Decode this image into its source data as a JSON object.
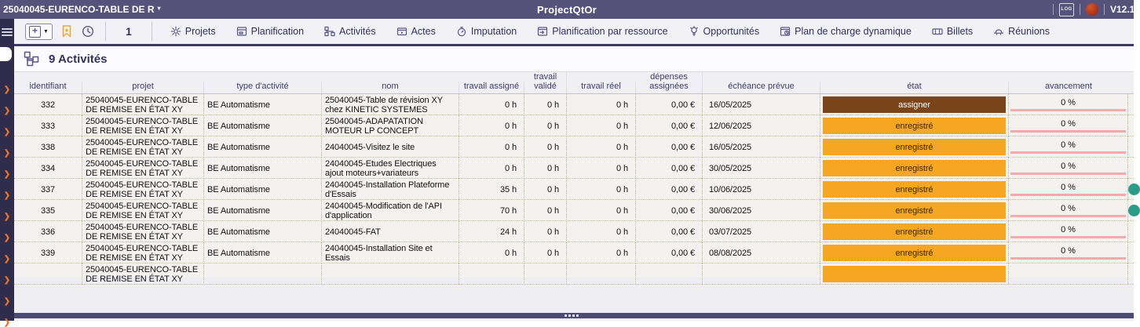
{
  "topbar": {
    "context_title": "25040045-EURENCO-TABLE DE R",
    "app_title": "ProjectQtOr",
    "log_label": "LOG",
    "version": "V12.1"
  },
  "toolbar": {
    "page_number": "1",
    "menu": [
      {
        "name": "projets",
        "label": "Projets",
        "icon": "gear"
      },
      {
        "name": "planification",
        "label": "Planification",
        "icon": "planning"
      },
      {
        "name": "activites",
        "label": "Activités",
        "icon": "orgchart"
      },
      {
        "name": "actes",
        "label": "Actes",
        "icon": "film"
      },
      {
        "name": "imputation",
        "label": "Imputation",
        "icon": "stopwatch"
      },
      {
        "name": "planification-par-ressource",
        "label": "Planification par ressource",
        "icon": "resource"
      },
      {
        "name": "opportunites",
        "label": "Opportunités",
        "icon": "bulb"
      },
      {
        "name": "plan-de-charge-dynamique",
        "label": "Plan de charge dynamique",
        "icon": "docclock"
      },
      {
        "name": "billets",
        "label": "Billets",
        "icon": "ticket"
      },
      {
        "name": "reunions",
        "label": "Réunions",
        "icon": "meeting"
      }
    ]
  },
  "sidebar": {
    "item_count": 12
  },
  "page": {
    "title": "9 Activités"
  },
  "table": {
    "columns": [
      {
        "key": "id",
        "label": "identifiant"
      },
      {
        "key": "project",
        "label": "projet"
      },
      {
        "key": "type",
        "label": "type d'activité"
      },
      {
        "key": "name",
        "label": "nom"
      },
      {
        "key": "assigned",
        "label": "travail assigné"
      },
      {
        "key": "validated",
        "label": "travail validé"
      },
      {
        "key": "real",
        "label": "travail réel"
      },
      {
        "key": "expenses",
        "label": "dépenses assignées"
      },
      {
        "key": "due",
        "label": "échéance prévue"
      },
      {
        "key": "state",
        "label": "état"
      },
      {
        "key": "progress",
        "label": "avancement"
      }
    ],
    "rows": [
      {
        "id": "332",
        "project": "25040045-EURENCO-TABLE DE REMISE EN ÉTAT XY",
        "type": "BE Automatisme",
        "name": "25040045-Table de révision XY chez KINETIC SYSTEMES",
        "assigned": "0 h",
        "validated": "0 h",
        "real": "0 h",
        "expenses": "0,00 €",
        "due": "16/05/2025",
        "state": "assigner",
        "state_style": "brown",
        "progress": "0 %",
        "dot": false
      },
      {
        "id": "333",
        "project": "25040045-EURENCO-TABLE DE REMISE EN ÉTAT XY",
        "type": "BE Automatisme",
        "name": "25040045-ADAPATATION MOTEUR LP CONCEPT",
        "assigned": "0 h",
        "validated": "0 h",
        "real": "0 h",
        "expenses": "0,00 €",
        "due": "12/06/2025",
        "state": "enregistré",
        "state_style": "orange",
        "progress": "0 %",
        "dot": false
      },
      {
        "id": "338",
        "project": "25040045-EURENCO-TABLE DE REMISE EN ÉTAT XY",
        "type": "BE Automatisme",
        "name": "24040045-Visitez le site",
        "assigned": "0 h",
        "validated": "0 h",
        "real": "0 h",
        "expenses": "0,00 €",
        "due": "16/05/2025",
        "state": "enregistré",
        "state_style": "orange",
        "progress": "0 %",
        "dot": false
      },
      {
        "id": "334",
        "project": "25040045-EURENCO-TABLE DE REMISE EN ÉTAT XY",
        "type": "BE Automatisme",
        "name": "24040045-Etudes Electriques ajout moteurs+variateurs",
        "assigned": "0 h",
        "validated": "0 h",
        "real": "0 h",
        "expenses": "0,00 €",
        "due": "30/05/2025",
        "state": "enregistré",
        "state_style": "orange",
        "progress": "0 %",
        "dot": false
      },
      {
        "id": "337",
        "project": "25040045-EURENCO-TABLE DE REMISE EN ÉTAT XY",
        "type": "BE Automatisme",
        "name": "24040045-Installation Plateforme d'Essais",
        "assigned": "35 h",
        "validated": "0 h",
        "real": "0 h",
        "expenses": "0,00 €",
        "due": "10/06/2025",
        "state": "enregistré",
        "state_style": "orange",
        "progress": "0 %",
        "dot": true
      },
      {
        "id": "335",
        "project": "25040045-EURENCO-TABLE DE REMISE EN ÉTAT XY",
        "type": "BE Automatisme",
        "name": "24040045-Modification de l'API d'application",
        "assigned": "70 h",
        "validated": "0 h",
        "real": "0 h",
        "expenses": "0,00 €",
        "due": "30/06/2025",
        "state": "enregistré",
        "state_style": "orange",
        "progress": "0 %",
        "dot": true
      },
      {
        "id": "336",
        "project": "25040045-EURENCO-TABLE DE REMISE EN ÉTAT XY",
        "type": "BE Automatisme",
        "name": "24040045-FAT",
        "assigned": "24 h",
        "validated": "0 h",
        "real": "0 h",
        "expenses": "0,00 €",
        "due": "03/07/2025",
        "state": "enregistré",
        "state_style": "orange",
        "progress": "0 %",
        "dot": false
      },
      {
        "id": "339",
        "project": "25040045-EURENCO-TABLE DE REMISE EN ÉTAT XY",
        "type": "BE Automatisme",
        "name": "24040045-Installation Site et Essais",
        "assigned": "0 h",
        "validated": "0 h",
        "real": "0 h",
        "expenses": "0,00 €",
        "due": "08/08/2025",
        "state": "enregistré",
        "state_style": "orange",
        "progress": "0 %",
        "dot": false
      },
      {
        "id": "",
        "project": "25040045-EURENCO-TABLE DE REMISE EN ÉTAT XY",
        "type": "",
        "name": "",
        "assigned": "",
        "validated": "",
        "real": "",
        "expenses": "",
        "due": "",
        "state": "",
        "state_style": "orange",
        "progress": "",
        "dot": false
      }
    ]
  },
  "colors": {
    "topbar": "#56537a",
    "sidebar": "#2f2c4c",
    "badge_orange": "#f5a623",
    "badge_brown": "#7b451c",
    "progress_pink": "#f3a9ae",
    "chevron_orange": "#e4762f",
    "indicator_green": "#2a9d8a",
    "icon_purple": "#5b5887"
  }
}
